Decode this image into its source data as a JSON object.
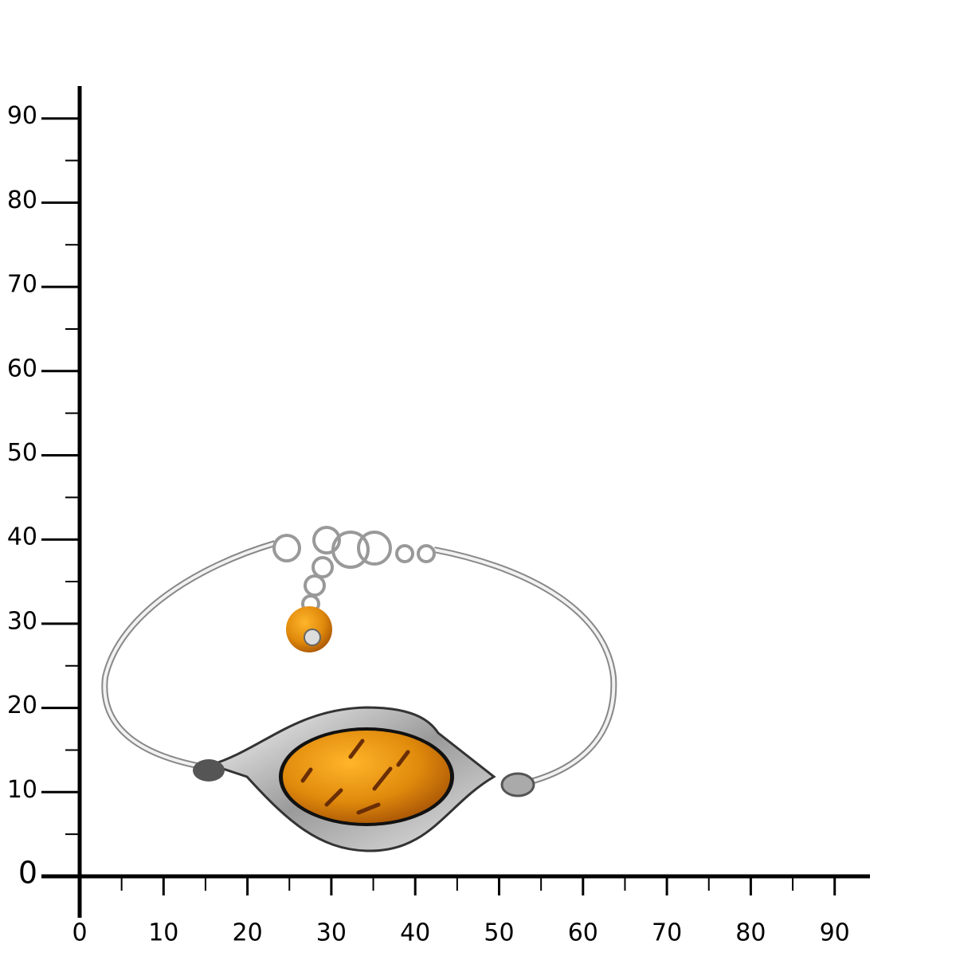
{
  "ruler": {
    "x_labels": [
      0,
      10,
      20,
      30,
      40,
      50,
      60,
      70,
      80,
      90
    ],
    "y_labels": [
      0,
      10,
      20,
      30,
      40,
      50,
      60,
      70,
      80,
      90
    ]
  }
}
